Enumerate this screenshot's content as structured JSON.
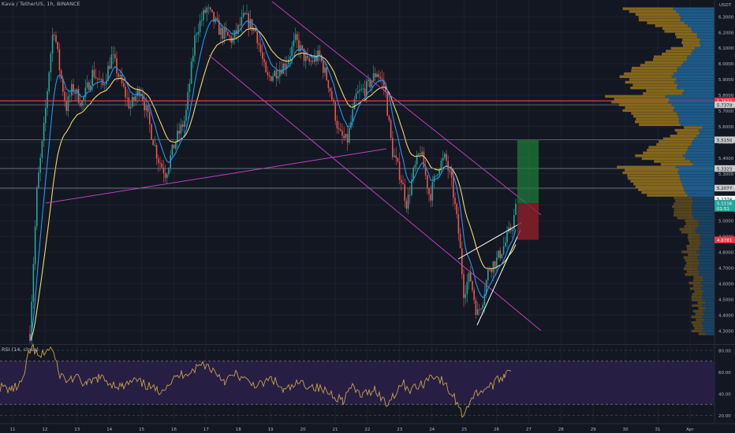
{
  "header": {
    "title": "Kava / TetherUS, 1h, BINANCE"
  },
  "price_scale": {
    "unit": "USDT",
    "labels": [
      "6.3000",
      "6.2000",
      "6.1000",
      "6.0000",
      "5.9000",
      "5.8000",
      "5.7000",
      "5.6000",
      "5.5000",
      "5.4000",
      "5.3000",
      "5.2000",
      "5.1000",
      "5.0000",
      "4.9000",
      "4.8000",
      "4.7000",
      "4.6000",
      "4.5000",
      "4.4000",
      "4.3000"
    ],
    "price_tags": [
      {
        "text": "5.7632",
        "value": 5.7632,
        "color": "#f23645"
      },
      {
        "text": "5.7379",
        "value": 5.7379,
        "color": "#c8c8c8"
      },
      {
        "text": "5.5150",
        "value": 5.515,
        "color": "#c8c8c8"
      },
      {
        "text": "5.3323",
        "value": 5.3323,
        "color": "#c8c8c8"
      },
      {
        "text": "5.2077",
        "value": 5.2077,
        "color": "#c8c8c8"
      },
      {
        "text": "5.1374",
        "value": 5.1374,
        "color": "#ffffff"
      },
      {
        "text": "5.1116",
        "value": 5.1116,
        "color": "#26a69a"
      },
      {
        "text": "01:51",
        "value": 5.0795,
        "color": "#26a69a"
      },
      {
        "text": "4.8781",
        "value": 4.8781,
        "color": "#f23645"
      }
    ]
  },
  "time_axis": {
    "labels": [
      "11",
      "12",
      "13",
      "14",
      "15",
      "16",
      "17",
      "18",
      "19",
      "20",
      "21",
      "22",
      "23",
      "24",
      "25",
      "26",
      "27",
      "28",
      "29",
      "30",
      "31",
      "Apr"
    ]
  },
  "rsi_panel": {
    "title": "RSI (14, close)",
    "labels": [
      "80.00",
      "60.00",
      "40.00",
      "20.00"
    ],
    "bands": [
      70,
      30
    ]
  },
  "horizontal_lines": [
    {
      "value": 5.7632,
      "color": "#f23645"
    },
    {
      "value": 5.7379,
      "color": "#787b86"
    },
    {
      "value": 5.515,
      "color": "#787b86"
    },
    {
      "value": 5.3323,
      "color": "#787b86"
    },
    {
      "value": 5.2077,
      "color": "#787b86"
    }
  ],
  "position_tool": {
    "entry": 5.1116,
    "target": 5.515,
    "stop": 4.8781
  },
  "colors": {
    "background": "#131722",
    "candle_up": "#26a69a",
    "candle_down": "#ef5350",
    "ema_fast": "#2196f3",
    "ema_slow": "#f5d76e",
    "trendline": "#c13ec1",
    "wedge": "#ffffff",
    "vp_up": "#1e5f8e",
    "vp_down": "#8a6a1c",
    "rsi_bg": "#2a1f48",
    "rsi_line": "#c4a24a"
  }
}
